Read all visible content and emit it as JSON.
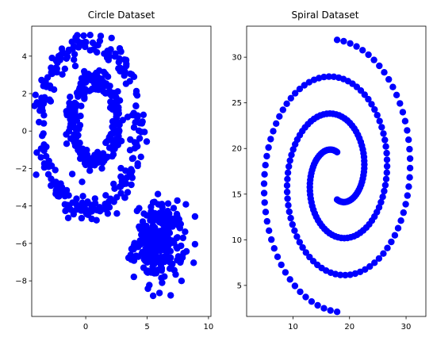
{
  "chart_data": [
    {
      "type": "scatter",
      "title": "Circle Dataset",
      "color": "#0000ff",
      "xlim": [
        -4.4,
        10.2
      ],
      "ylim": [
        -9.9,
        5.6
      ],
      "xticks": [
        0,
        5,
        10
      ],
      "yticks": [
        -8,
        -6,
        -4,
        -2,
        0,
        2,
        4
      ],
      "grid": false,
      "clusters": [
        {
          "shape": "ring",
          "cx": 0.3,
          "cy": 0.3,
          "rx": 4.0,
          "ry": 4.5,
          "spread": 0.35,
          "count": 260
        },
        {
          "shape": "ring",
          "cx": 0.7,
          "cy": 0.6,
          "rx": 1.8,
          "ry": 2.2,
          "spread": 0.3,
          "count": 240
        },
        {
          "shape": "blob",
          "cx": 6.0,
          "cy": -5.9,
          "sd": 1.0,
          "count": 260
        }
      ]
    },
    {
      "type": "scatter",
      "title": "Spiral Dataset",
      "color": "#0000ff",
      "xlim": [
        1.8,
        33.5
      ],
      "ylim": [
        1.6,
        33.4
      ],
      "xticks": [
        10,
        20,
        30
      ],
      "yticks": [
        5,
        10,
        15,
        20,
        25,
        30
      ],
      "grid": false,
      "spiral": {
        "cx": 17.8,
        "cy": 17.0,
        "points_per_arm": 120,
        "arms": [
          {
            "start_angle_deg": 90,
            "r_start": 2.6,
            "r_end": 14.9
          },
          {
            "start_angle_deg": 270,
            "r_start": 2.6,
            "r_end": 14.9
          }
        ]
      }
    }
  ]
}
